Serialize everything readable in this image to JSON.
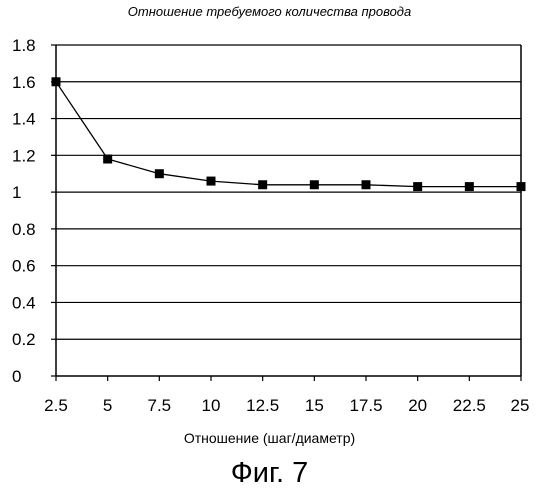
{
  "chart_data": {
    "type": "line",
    "title": "Отношение требуемого количества провода",
    "xlabel": "Отношение (шаг/диаметр)",
    "ylabel": "",
    "x": [
      2.5,
      5,
      7.5,
      10,
      12.5,
      15,
      17.5,
      20,
      22.5,
      25
    ],
    "x_tick_labels": [
      "2.5",
      "5",
      "7.5",
      "10",
      "12.5",
      "15",
      "17.5",
      "20",
      "22.5",
      "25"
    ],
    "y_tick_labels": [
      "0",
      "0.2",
      "0.4",
      "0.6",
      "0.8",
      "1",
      "1.2",
      "1.4",
      "1.6",
      "1.8"
    ],
    "y_ticks": [
      0,
      0.2,
      0.4,
      0.6,
      0.8,
      1,
      1.2,
      1.4,
      1.6,
      1.8
    ],
    "xlim": [
      2.5,
      25
    ],
    "ylim": [
      0,
      1.8
    ],
    "grid": "horizontal",
    "marker": "square",
    "line_color": "#000000",
    "series": [
      {
        "values": [
          1.6,
          1.18,
          1.1,
          1.06,
          1.04,
          1.04,
          1.04,
          1.03,
          1.03,
          1.03
        ]
      }
    ]
  },
  "caption": "Фиг. 7"
}
